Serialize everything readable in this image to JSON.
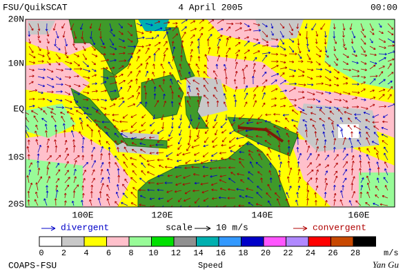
{
  "header": {
    "title": "FSU/QuikSCAT",
    "date": "4 April 2005",
    "time": "00:00"
  },
  "map": {
    "lat_labels": [
      "20N",
      "10N",
      "EQ",
      "10S",
      "20S"
    ],
    "lon_labels": [
      "100E",
      "120E",
      "140E",
      "160E"
    ]
  },
  "legend": {
    "divergent": "divergent",
    "scale": "scale",
    "scale_value": "10 m/s",
    "convergent": "convergent"
  },
  "colorbar": {
    "ticks": [
      0,
      2,
      4,
      6,
      8,
      10,
      12,
      14,
      16,
      18,
      20,
      22,
      24,
      26,
      28
    ],
    "unit": "m/s",
    "label": "Speed",
    "colors": [
      "#ffffff",
      "#c8c8c8",
      "#ffff00",
      "#ffc0cb",
      "#98fb98",
      "#00e000",
      "#909090",
      "#00b0b0",
      "#3399ff",
      "#0000c8",
      "#ff55ff",
      "#b088ff",
      "#ff0000",
      "#c84800",
      "#000000"
    ]
  },
  "footer": {
    "source": "COAPS-FSU",
    "author": "Yan Gu"
  }
}
